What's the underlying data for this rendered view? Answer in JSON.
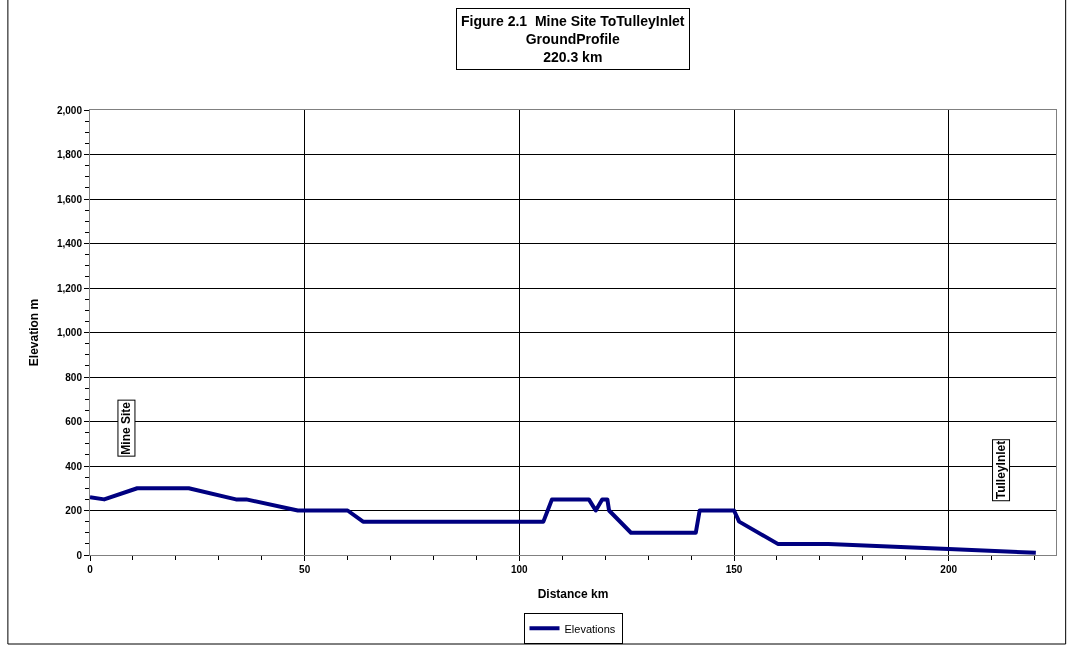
{
  "chart_data": {
    "type": "line",
    "title": "Figure 2.1  Mine Site ToTulleyInlet\nGroundProfile\n220.3 km",
    "xlabel": "Distance km",
    "ylabel": "Elevation m",
    "xlim": [
      0,
      225
    ],
    "xticks": [
      0,
      50,
      100,
      150,
      200
    ],
    "ylim": [
      0,
      2000
    ],
    "yticks": [
      {
        "value": 0,
        "label": "0"
      },
      {
        "value": 200,
        "label": "200"
      },
      {
        "value": 400,
        "label": "400"
      },
      {
        "value": 600,
        "label": "600"
      },
      {
        "value": 800,
        "label": "800"
      },
      {
        "value": 1000,
        "label": "1,000"
      },
      {
        "value": 1200,
        "label": "1,200"
      },
      {
        "value": 1400,
        "label": "1,400"
      },
      {
        "value": 1600,
        "label": "1,600"
      },
      {
        "value": 1800,
        "label": "1,800"
      },
      {
        "value": 2000,
        "label": "2,000"
      }
    ],
    "grid": true,
    "legend": "bottom",
    "marker": "none",
    "line_style": "solid",
    "series": [
      {
        "name": "Elevations",
        "color": "#000080",
        "x": [
          0,
          3.3,
          11,
          23,
          34,
          36.4,
          48.4,
          60,
          63.6,
          105.6,
          107.6,
          116.2,
          117.8,
          119.3,
          120.5,
          120.9,
          123.2,
          126,
          141.1,
          142,
          150,
          151.2,
          160.2,
          172,
          200,
          220.3
        ],
        "values": [
          260,
          250,
          300,
          300,
          250,
          250,
          200,
          200,
          150,
          150,
          250,
          250,
          200,
          250,
          250,
          200,
          155,
          100,
          100,
          200,
          200,
          150,
          50,
          50,
          27,
          10
        ]
      }
    ],
    "annotations": [
      "Mine Site",
      "TulleyInlet"
    ]
  }
}
